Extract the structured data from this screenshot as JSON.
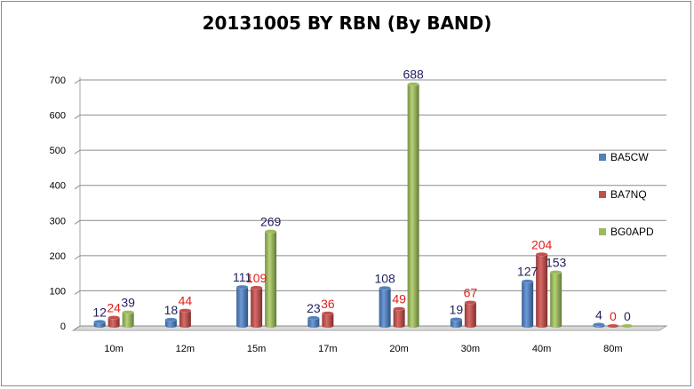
{
  "chart_data": {
    "type": "bar",
    "title": "20131005 BY RBN (By BAND)",
    "xlabel": "",
    "ylabel": "",
    "ylim": [
      0,
      700
    ],
    "yticks": [
      0,
      100,
      200,
      300,
      400,
      500,
      600,
      700
    ],
    "grid": true,
    "legend_position": "right",
    "categories": [
      "10m",
      "12m",
      "15m",
      "17m",
      "20m",
      "30m",
      "40m",
      "80m"
    ],
    "series": [
      {
        "name": "BA5CW",
        "color": "#4F81BD",
        "label_color": "#1F1F5F",
        "values": [
          12,
          18,
          111,
          23,
          108,
          19,
          127,
          4
        ]
      },
      {
        "name": "BA7NQ",
        "color": "#C0504D",
        "label_color": "#E0201A",
        "values": [
          24,
          44,
          109,
          36,
          49,
          67,
          204,
          0
        ]
      },
      {
        "name": "BG0APD",
        "color": "#9BBB59",
        "label_color": "#1F1F5F",
        "values": [
          39,
          null,
          269,
          null,
          688,
          null,
          153,
          0
        ]
      }
    ]
  }
}
